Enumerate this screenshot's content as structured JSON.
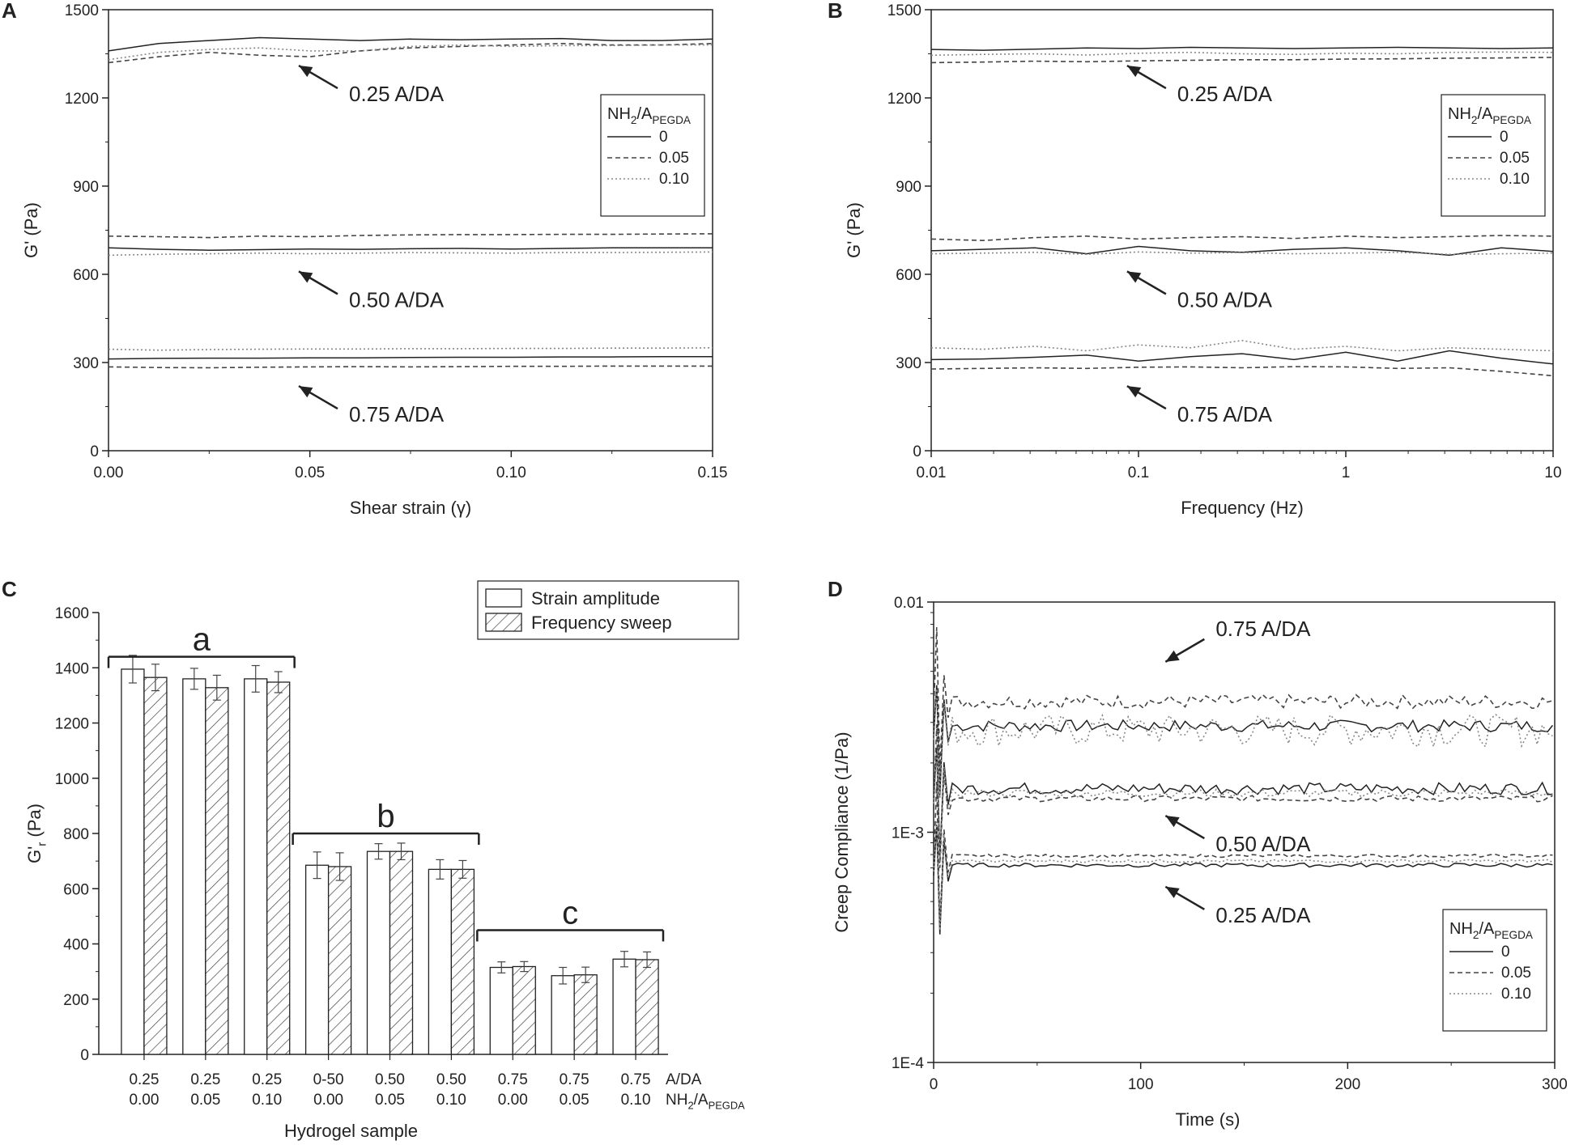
{
  "panel_labels": [
    "A",
    "B",
    "C",
    "D"
  ],
  "legend_common": {
    "title_main": "NH",
    "title_sub1": "2",
    "title_mid": "/A",
    "title_sub2": "PEGDA",
    "items": [
      "0",
      "0.05",
      "0.10"
    ]
  },
  "chart_data": [
    {
      "panel": "A",
      "type": "line",
      "xlabel": "Shear strain (γ)",
      "ylabel": "G' (Pa)",
      "xlim": [
        0.0,
        0.15
      ],
      "ylim": [
        0,
        1500
      ],
      "xticks": [
        "0.00",
        "0.05",
        "0.10",
        "0.15"
      ],
      "yticks": [
        "0",
        "300",
        "600",
        "900",
        "1200",
        "1500"
      ],
      "annotations": [
        "0.25 A/DA",
        "0.50 A/DA",
        "0.75 A/DA"
      ],
      "groups": [
        {
          "label": "0.25 A/DA",
          "series": [
            {
              "name": "0",
              "style": "solid",
              "values": [
                1360,
                1385,
                1395,
                1405,
                1400,
                1395,
                1400,
                1398,
                1400,
                1402,
                1395,
                1395,
                1400
              ]
            },
            {
              "name": "0.05",
              "style": "dashed",
              "values": [
                1320,
                1340,
                1355,
                1345,
                1340,
                1360,
                1370,
                1375,
                1380,
                1385,
                1380,
                1380,
                1385
              ]
            },
            {
              "name": "0.10",
              "style": "dotted",
              "values": [
                1330,
                1355,
                1365,
                1370,
                1360,
                1360,
                1375,
                1380,
                1375,
                1378,
                1378,
                1380,
                1380
              ]
            }
          ]
        },
        {
          "label": "0.50 A/DA",
          "series": [
            {
              "name": "0",
              "style": "solid",
              "values": [
                690,
                685,
                682,
                684,
                686,
                685,
                687,
                688,
                686,
                688,
                690,
                690,
                690
              ]
            },
            {
              "name": "0.05",
              "style": "dashed",
              "values": [
                730,
                728,
                725,
                730,
                728,
                732,
                734,
                735,
                735,
                736,
                736,
                737,
                738
              ]
            },
            {
              "name": "0.10",
              "style": "dotted",
              "values": [
                665,
                668,
                670,
                672,
                670,
                672,
                674,
                673,
                672,
                674,
                674,
                675,
                676
              ]
            }
          ]
        },
        {
          "label": "0.75 A/DA",
          "series": [
            {
              "name": "0",
              "style": "solid",
              "values": [
                312,
                314,
                315,
                315,
                316,
                316,
                317,
                318,
                318,
                319,
                319,
                320,
                320
              ]
            },
            {
              "name": "0.05",
              "style": "dashed",
              "values": [
                285,
                283,
                282,
                284,
                285,
                286,
                285,
                286,
                287,
                287,
                288,
                288,
                288
              ]
            },
            {
              "name": "0.10",
              "style": "dotted",
              "values": [
                345,
                342,
                344,
                345,
                346,
                346,
                347,
                347,
                348,
                348,
                349,
                349,
                350
              ]
            }
          ]
        }
      ]
    },
    {
      "panel": "B",
      "type": "line",
      "xscale": "log",
      "xlabel": "Frequency (Hz)",
      "ylabel": "G' (Pa)",
      "xlim": [
        0.01,
        10
      ],
      "ylim": [
        0,
        1500
      ],
      "xticks": [
        "0.01",
        "0.1",
        "1",
        "10"
      ],
      "yticks": [
        "0",
        "300",
        "600",
        "900",
        "1200",
        "1500"
      ],
      "annotations": [
        "0.25 A/DA",
        "0.50 A/DA",
        "0.75 A/DA"
      ],
      "groups": [
        {
          "label": "0.25 A/DA",
          "series": [
            {
              "name": "0",
              "style": "solid",
              "values": [
                1365,
                1362,
                1366,
                1370,
                1368,
                1372,
                1370,
                1368,
                1370,
                1372,
                1370,
                1368,
                1370
              ]
            },
            {
              "name": "0.05",
              "style": "dashed",
              "values": [
                1320,
                1322,
                1325,
                1323,
                1326,
                1328,
                1330,
                1330,
                1332,
                1333,
                1335,
                1336,
                1338
              ]
            },
            {
              "name": "0.10",
              "style": "dotted",
              "values": [
                1345,
                1348,
                1350,
                1346,
                1352,
                1355,
                1350,
                1348,
                1352,
                1350,
                1355,
                1356,
                1355
              ]
            }
          ]
        },
        {
          "label": "0.50 A/DA",
          "series": [
            {
              "name": "0",
              "style": "solid",
              "values": [
                680,
                685,
                690,
                670,
                695,
                680,
                675,
                685,
                690,
                680,
                665,
                690,
                678
              ]
            },
            {
              "name": "0.05",
              "style": "dashed",
              "values": [
                720,
                715,
                725,
                730,
                720,
                725,
                728,
                722,
                730,
                725,
                728,
                732,
                730
              ]
            },
            {
              "name": "0.10",
              "style": "dotted",
              "values": [
                670,
                672,
                675,
                668,
                676,
                672,
                674,
                670,
                672,
                675,
                668,
                670,
                672
              ]
            }
          ]
        },
        {
          "label": "0.75 A/DA",
          "series": [
            {
              "name": "0",
              "style": "solid",
              "values": [
                310,
                312,
                318,
                325,
                305,
                320,
                330,
                310,
                335,
                305,
                340,
                315,
                295
              ]
            },
            {
              "name": "0.05",
              "style": "dashed",
              "values": [
                278,
                280,
                282,
                280,
                284,
                285,
                282,
                286,
                285,
                280,
                282,
                270,
                255
              ]
            },
            {
              "name": "0.10",
              "style": "dotted",
              "values": [
                350,
                345,
                355,
                340,
                360,
                350,
                375,
                345,
                355,
                340,
                350,
                345,
                340
              ]
            }
          ]
        }
      ]
    },
    {
      "panel": "C",
      "type": "bar",
      "ylabel_main": "G'",
      "ylabel_sub": "r",
      "ylabel_unit": " (Pa)",
      "xlabel": "Hydrogel sample",
      "ylim": [
        0,
        1600
      ],
      "yticks": [
        "0",
        "200",
        "400",
        "600",
        "800",
        "1000",
        "1200",
        "1400",
        "1600"
      ],
      "row_labels": {
        "line1": "A/DA",
        "line2_main": "NH",
        "line2_sub1": "2",
        "line2_mid": "/A",
        "line2_sub2": "PEGDA"
      },
      "categories_line1": [
        "0.25",
        "0.25",
        "0.25",
        "0-50",
        "0.50",
        "0.50",
        "0.75",
        "0.75",
        "0.75"
      ],
      "categories_line2": [
        "0.00",
        "0.05",
        "0.10",
        "0.00",
        "0.05",
        "0.10",
        "0.00",
        "0.05",
        "0.10"
      ],
      "legend": [
        "Strain amplitude",
        "Frequency sweep"
      ],
      "series": [
        {
          "name": "Strain amplitude",
          "values": [
            1395,
            1360,
            1360,
            685,
            735,
            670,
            315,
            285,
            345
          ],
          "errors": [
            50,
            38,
            48,
            48,
            28,
            35,
            20,
            30,
            28
          ]
        },
        {
          "name": "Frequency sweep",
          "values": [
            1365,
            1328,
            1348,
            680,
            735,
            670,
            318,
            288,
            343
          ],
          "errors": [
            48,
            45,
            38,
            50,
            30,
            32,
            18,
            28,
            28
          ]
        }
      ],
      "group_brackets": [
        {
          "label": "a",
          "first": 0,
          "last": 2,
          "level": 1440
        },
        {
          "label": "b",
          "first": 3,
          "last": 5,
          "level": 800
        },
        {
          "label": "c",
          "first": 6,
          "last": 8,
          "level": 450
        }
      ]
    },
    {
      "panel": "D",
      "type": "line",
      "yscale": "log",
      "xlabel": "Time (s)",
      "ylabel": "Creep Compliance (1/Pa)",
      "xlim": [
        0,
        300
      ],
      "ylim": [
        0.0001,
        0.01
      ],
      "xticks": [
        "0",
        "100",
        "200",
        "300"
      ],
      "yticks": [
        "1E-4",
        "1E-3",
        "0.01"
      ],
      "annotations": [
        "0.75 A/DA",
        "0.50 A/DA",
        "0.25 A/DA"
      ],
      "groups": [
        {
          "label": "0.75 A/DA",
          "series": [
            {
              "name": "0",
              "style": "solid",
              "level": 0.0029,
              "noise": 0.06
            },
            {
              "name": "0.05",
              "style": "dashed",
              "level": 0.0037,
              "noise": 0.07
            },
            {
              "name": "0.10",
              "style": "dotted",
              "level": 0.0028,
              "noise": 0.16
            }
          ]
        },
        {
          "label": "0.50 A/DA",
          "series": [
            {
              "name": "0",
              "style": "solid",
              "level": 0.00155,
              "noise": 0.06
            },
            {
              "name": "0.05",
              "style": "dashed",
              "level": 0.0014,
              "noise": 0.03
            },
            {
              "name": "0.10",
              "style": "dotted",
              "level": 0.00148,
              "noise": 0.04
            }
          ]
        },
        {
          "label": "0.25 A/DA",
          "series": [
            {
              "name": "0",
              "style": "solid",
              "level": 0.00072,
              "noise": 0.02
            },
            {
              "name": "0.05",
              "style": "dashed",
              "level": 0.00079,
              "noise": 0.015
            },
            {
              "name": "0.10",
              "style": "dotted",
              "level": 0.00075,
              "noise": 0.015
            }
          ]
        }
      ]
    }
  ]
}
